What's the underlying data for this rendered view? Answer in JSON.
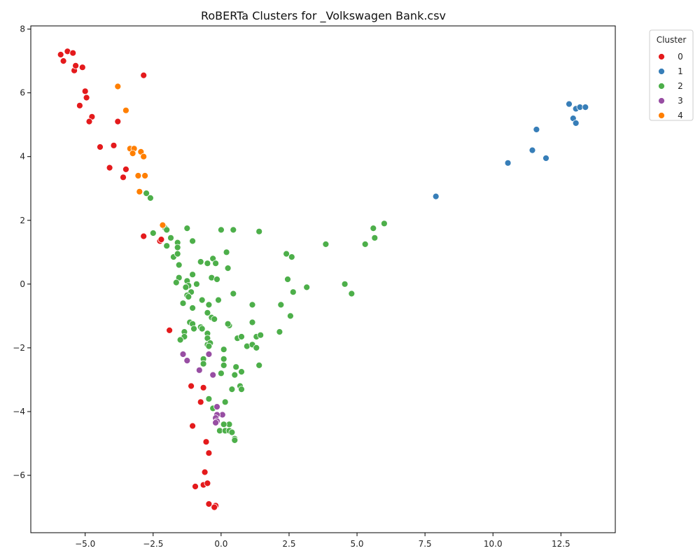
{
  "chart_data": {
    "type": "scatter",
    "title": "RoBERTa Clusters for _Volkswagen Bank.csv",
    "xlabel": "",
    "ylabel": "",
    "xlim": [
      -7.0,
      14.5
    ],
    "ylim": [
      -7.8,
      8.1
    ],
    "xticks": [
      -5.0,
      -2.5,
      0.0,
      2.5,
      5.0,
      7.5,
      10.0,
      12.5
    ],
    "xtick_labels": [
      "−5.0",
      "−2.5",
      "0.0",
      "2.5",
      "5.0",
      "7.5",
      "10.0",
      "12.5"
    ],
    "yticks": [
      -6,
      -4,
      -2,
      0,
      2,
      4,
      6,
      8
    ],
    "ytick_labels": [
      "−6",
      "−4",
      "−2",
      "0",
      "2",
      "4",
      "6",
      "8"
    ],
    "grid": false,
    "legend": {
      "title": "Cluster",
      "placement": "outside-top-right"
    },
    "series": [
      {
        "name": "0",
        "color": "#e41a1c",
        "points": [
          [
            -5.9,
            7.2
          ],
          [
            -5.8,
            7.0
          ],
          [
            -5.65,
            7.3
          ],
          [
            -5.45,
            7.25
          ],
          [
            -5.4,
            6.7
          ],
          [
            -5.35,
            6.85
          ],
          [
            -5.1,
            6.8
          ],
          [
            -2.85,
            6.55
          ],
          [
            -5.0,
            6.05
          ],
          [
            -4.95,
            5.85
          ],
          [
            -5.2,
            5.6
          ],
          [
            -4.75,
            5.25
          ],
          [
            -4.85,
            5.1
          ],
          [
            -3.8,
            5.1
          ],
          [
            -4.45,
            4.3
          ],
          [
            -3.95,
            4.35
          ],
          [
            -4.1,
            3.65
          ],
          [
            -3.5,
            3.6
          ],
          [
            -3.6,
            3.35
          ],
          [
            -2.85,
            1.5
          ],
          [
            -2.25,
            1.35
          ],
          [
            -2.2,
            1.4
          ],
          [
            -1.9,
            -1.45
          ],
          [
            -1.1,
            -3.2
          ],
          [
            -0.65,
            -3.25
          ],
          [
            -0.75,
            -3.7
          ],
          [
            -1.05,
            -4.45
          ],
          [
            -0.55,
            -4.95
          ],
          [
            -0.45,
            -5.3
          ],
          [
            -0.6,
            -5.9
          ],
          [
            -0.65,
            -6.3
          ],
          [
            -0.5,
            -6.25
          ],
          [
            -0.95,
            -6.35
          ],
          [
            -0.45,
            -6.9
          ],
          [
            -0.2,
            -6.95
          ],
          [
            -0.25,
            -7.0
          ]
        ]
      },
      {
        "name": "1",
        "color": "#377eb8",
        "points": [
          [
            12.8,
            5.65
          ],
          [
            13.05,
            5.5
          ],
          [
            13.2,
            5.55
          ],
          [
            13.4,
            5.55
          ],
          [
            12.95,
            5.2
          ],
          [
            13.05,
            5.05
          ],
          [
            11.6,
            4.85
          ],
          [
            11.45,
            4.2
          ],
          [
            11.95,
            3.95
          ],
          [
            10.55,
            3.8
          ],
          [
            7.9,
            2.75
          ]
        ]
      },
      {
        "name": "2",
        "color": "#4daf4a",
        "points": [
          [
            -2.75,
            2.85
          ],
          [
            -2.6,
            2.7
          ],
          [
            -2.5,
            1.6
          ],
          [
            -2.05,
            1.75
          ],
          [
            -2.0,
            1.7
          ],
          [
            -1.25,
            1.75
          ],
          [
            -1.85,
            1.45
          ],
          [
            -2.0,
            1.2
          ],
          [
            -1.6,
            1.3
          ],
          [
            -1.6,
            1.15
          ],
          [
            -1.05,
            1.35
          ],
          [
            -1.75,
            0.85
          ],
          [
            -1.6,
            0.95
          ],
          [
            -1.55,
            0.6
          ],
          [
            0.0,
            1.7
          ],
          [
            0.45,
            1.7
          ],
          [
            1.4,
            1.65
          ],
          [
            0.2,
            1.0
          ],
          [
            -0.3,
            0.8
          ],
          [
            -0.2,
            0.65
          ],
          [
            -0.5,
            0.65
          ],
          [
            -0.75,
            0.7
          ],
          [
            0.25,
            0.5
          ],
          [
            -1.05,
            0.3
          ],
          [
            -1.55,
            0.2
          ],
          [
            -1.65,
            0.05
          ],
          [
            -1.25,
            0.1
          ],
          [
            -0.9,
            0.0
          ],
          [
            -1.2,
            -0.05
          ],
          [
            -1.3,
            -0.1
          ],
          [
            -1.1,
            -0.25
          ],
          [
            -1.25,
            -0.35
          ],
          [
            -1.2,
            -0.4
          ],
          [
            -0.35,
            0.2
          ],
          [
            -0.15,
            0.15
          ],
          [
            0.45,
            -0.3
          ],
          [
            -1.4,
            -0.6
          ],
          [
            -1.05,
            -0.75
          ],
          [
            -0.7,
            -0.5
          ],
          [
            -0.45,
            -0.65
          ],
          [
            -0.1,
            -0.5
          ],
          [
            1.15,
            -0.65
          ],
          [
            2.2,
            -0.65
          ],
          [
            -0.5,
            -0.9
          ],
          [
            -0.35,
            -1.05
          ],
          [
            -0.25,
            -1.1
          ],
          [
            -1.15,
            -1.2
          ],
          [
            -1.05,
            -1.25
          ],
          [
            -1.0,
            -1.4
          ],
          [
            -0.75,
            -1.35
          ],
          [
            -0.7,
            -1.4
          ],
          [
            0.3,
            -1.3
          ],
          [
            0.25,
            -1.25
          ],
          [
            1.15,
            -1.2
          ],
          [
            2.55,
            -1.0
          ],
          [
            -1.35,
            -1.5
          ],
          [
            -1.35,
            -1.65
          ],
          [
            -1.5,
            -1.75
          ],
          [
            -0.5,
            -1.55
          ],
          [
            -0.5,
            -1.7
          ],
          [
            -0.5,
            -1.9
          ],
          [
            -0.4,
            -1.85
          ],
          [
            -0.45,
            -1.95
          ],
          [
            0.6,
            -1.7
          ],
          [
            0.75,
            -1.65
          ],
          [
            1.3,
            -1.65
          ],
          [
            1.45,
            -1.6
          ],
          [
            2.15,
            -1.5
          ],
          [
            0.95,
            -1.95
          ],
          [
            1.15,
            -1.9
          ],
          [
            1.3,
            -2.0
          ],
          [
            0.1,
            -2.05
          ],
          [
            0.1,
            -2.35
          ],
          [
            -0.65,
            -2.35
          ],
          [
            -0.65,
            -2.5
          ],
          [
            0.1,
            -2.55
          ],
          [
            0.55,
            -2.6
          ],
          [
            1.4,
            -2.55
          ],
          [
            0.0,
            -2.8
          ],
          [
            0.5,
            -2.85
          ],
          [
            0.75,
            -2.75
          ],
          [
            0.7,
            -3.2
          ],
          [
            0.75,
            -3.3
          ],
          [
            0.4,
            -3.3
          ],
          [
            -0.45,
            -3.6
          ],
          [
            0.15,
            -3.7
          ],
          [
            -0.3,
            -3.9
          ],
          [
            0.3,
            -4.4
          ],
          [
            0.1,
            -4.4
          ],
          [
            -0.05,
            -4.6
          ],
          [
            0.15,
            -4.6
          ],
          [
            0.3,
            -4.6
          ],
          [
            0.4,
            -4.65
          ],
          [
            0.5,
            -4.85
          ],
          [
            0.5,
            -4.9
          ],
          [
            3.85,
            1.25
          ],
          [
            2.4,
            0.95
          ],
          [
            2.6,
            0.85
          ],
          [
            2.45,
            0.15
          ],
          [
            2.65,
            -0.25
          ],
          [
            3.15,
            -0.1
          ],
          [
            5.6,
            1.75
          ],
          [
            5.65,
            1.45
          ],
          [
            6.0,
            1.9
          ],
          [
            5.3,
            1.25
          ],
          [
            4.55,
            0.0
          ],
          [
            4.8,
            -0.3
          ]
        ]
      },
      {
        "name": "3",
        "color": "#984ea3",
        "points": [
          [
            -1.4,
            -2.2
          ],
          [
            -1.25,
            -2.4
          ],
          [
            -0.45,
            -2.2
          ],
          [
            -0.8,
            -2.7
          ],
          [
            -0.3,
            -2.85
          ],
          [
            -0.15,
            -3.85
          ],
          [
            0.05,
            -4.1
          ],
          [
            -0.15,
            -4.1
          ],
          [
            -0.2,
            -4.2
          ],
          [
            -0.15,
            -4.3
          ],
          [
            -0.2,
            -4.35
          ]
        ]
      },
      {
        "name": "4",
        "color": "#ff7f00",
        "points": [
          [
            -3.8,
            6.2
          ],
          [
            -3.5,
            5.45
          ],
          [
            -3.35,
            4.25
          ],
          [
            -3.2,
            4.25
          ],
          [
            -3.25,
            4.1
          ],
          [
            -2.95,
            4.15
          ],
          [
            -2.85,
            4.0
          ],
          [
            -3.05,
            3.4
          ],
          [
            -2.8,
            3.4
          ],
          [
            -3.0,
            2.9
          ],
          [
            -2.15,
            1.85
          ]
        ]
      }
    ]
  }
}
